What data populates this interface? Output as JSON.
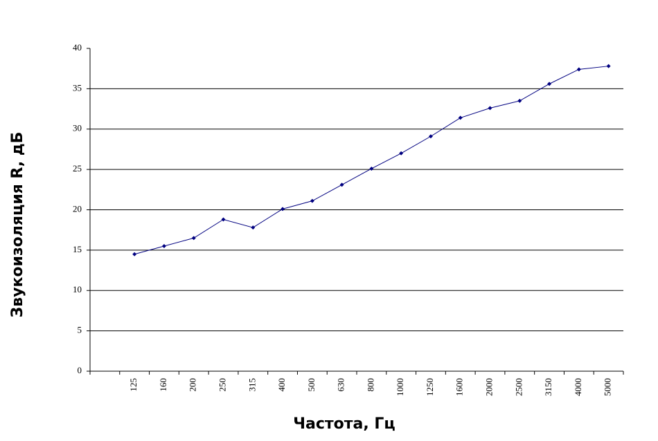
{
  "chart_data": {
    "type": "line",
    "x_label": "Частота, Гц",
    "y_label": "Звукоизоляция R, дБ",
    "categories": [
      null,
      "125",
      "160",
      "200",
      "250",
      "315",
      "400",
      "500",
      "630",
      "800",
      "1000",
      "1250",
      "1600",
      "2000",
      "2500",
      "3150",
      "4000",
      "5000"
    ],
    "series": [
      {
        "color": "#000080",
        "values": [
          null,
          14.5,
          15.5,
          16.5,
          18.8,
          17.8,
          20.1,
          21.1,
          23.1,
          25.1,
          27.0,
          29.1,
          31.4,
          32.6,
          33.5,
          35.6,
          37.4,
          37.8
        ]
      }
    ],
    "ylim": [
      0,
      40
    ],
    "yticks": [
      0,
      5,
      10,
      15,
      20,
      25,
      30,
      35,
      40
    ],
    "grid": true
  }
}
